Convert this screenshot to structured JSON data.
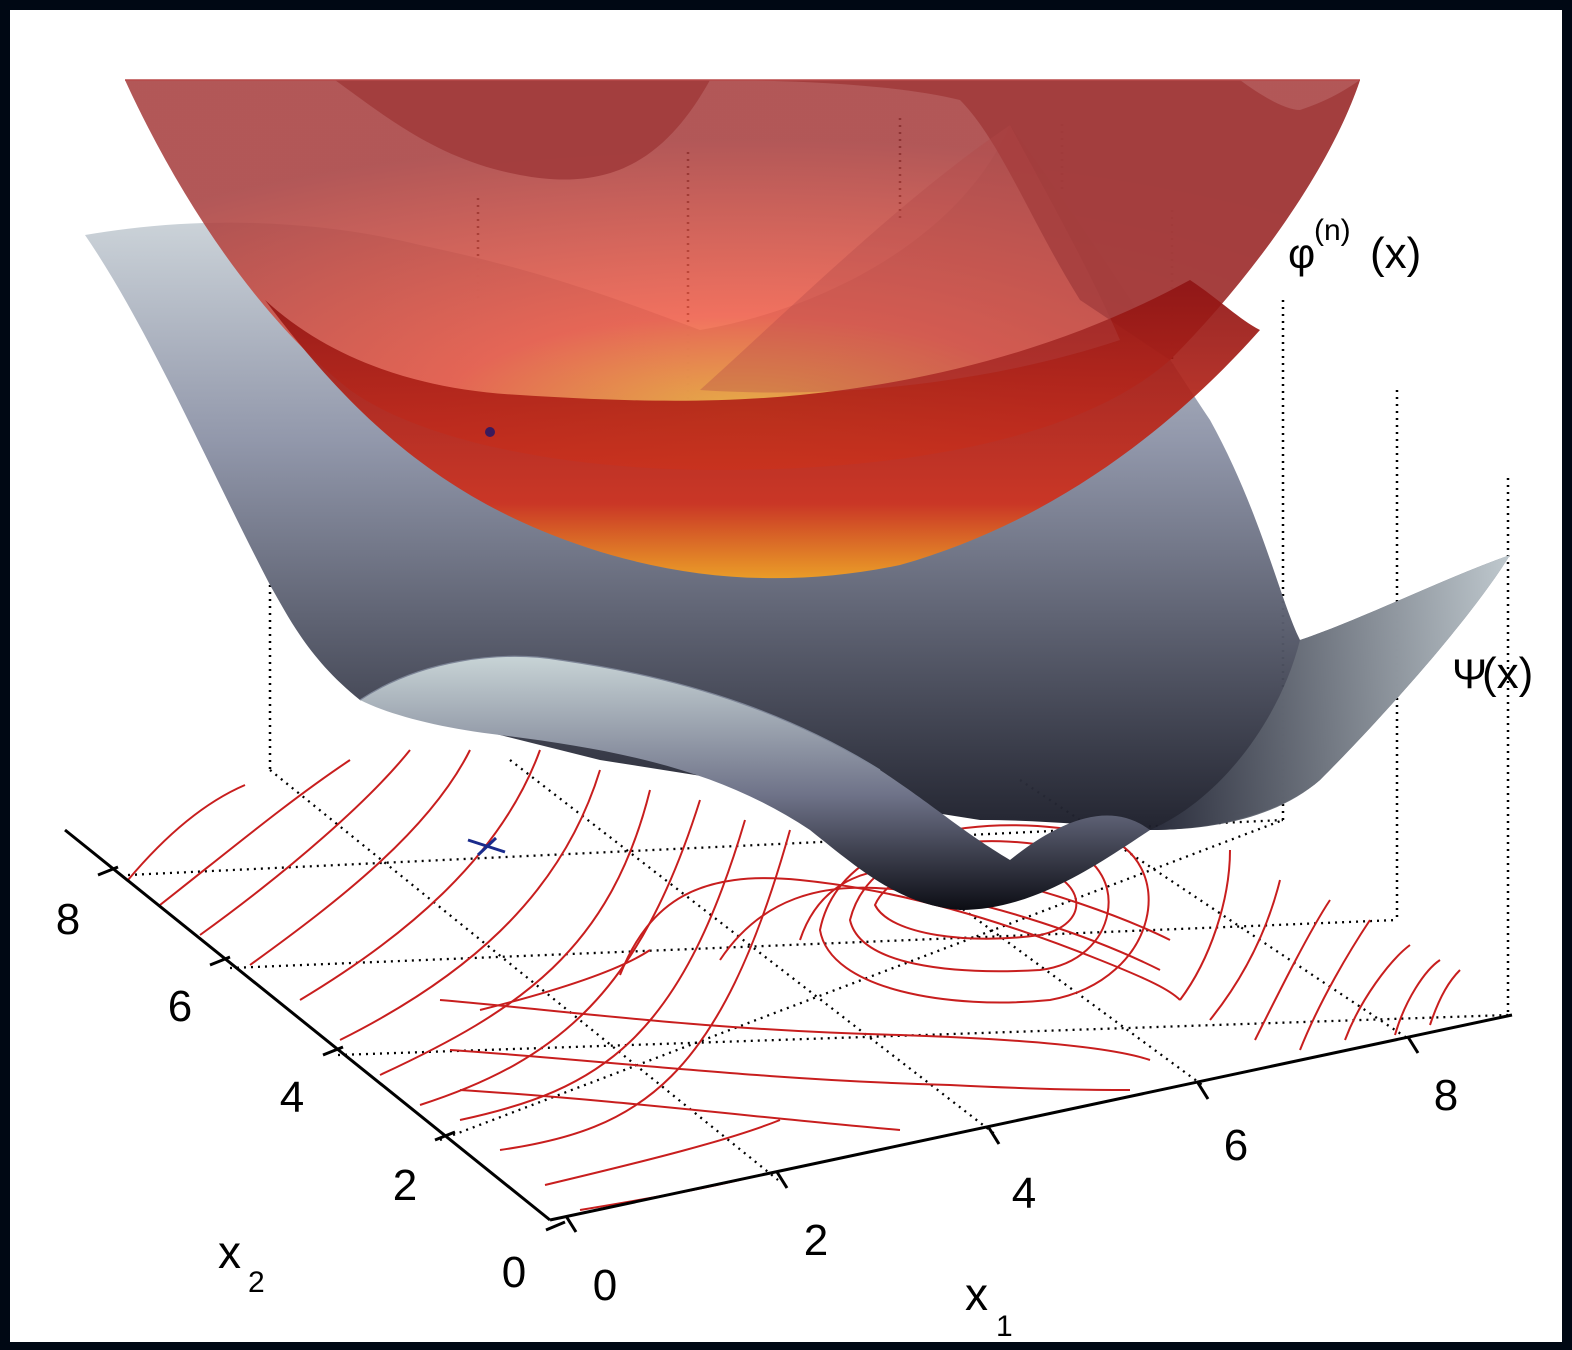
{
  "chart_data": {
    "type": "surface",
    "title": "",
    "xlabel": "x",
    "xlabel_sub": "1",
    "ylabel": "x",
    "ylabel_sub": "2",
    "x_ticks": [
      "0",
      "2",
      "4",
      "6",
      "8"
    ],
    "y_ticks": [
      "0",
      "2",
      "4",
      "6",
      "8"
    ],
    "x_range": [
      0,
      8
    ],
    "y_range": [
      0,
      8
    ],
    "series": [
      {
        "name": "φ(n)(x)",
        "name_base": "φ",
        "name_sup": "(n)",
        "name_arg": "(x)",
        "style": "quadratic bowl, red-to-orange, semi-transparent",
        "color": "#c0392b"
      },
      {
        "name": "Ψ(x)",
        "name_base": "Ψ",
        "name_arg": "(x)",
        "style": "double-well surface, gray-blue",
        "color": "#5a6175"
      }
    ],
    "contour_color": "#c81e1e",
    "projection_color": "#000000",
    "grid": true,
    "marker": "x"
  }
}
